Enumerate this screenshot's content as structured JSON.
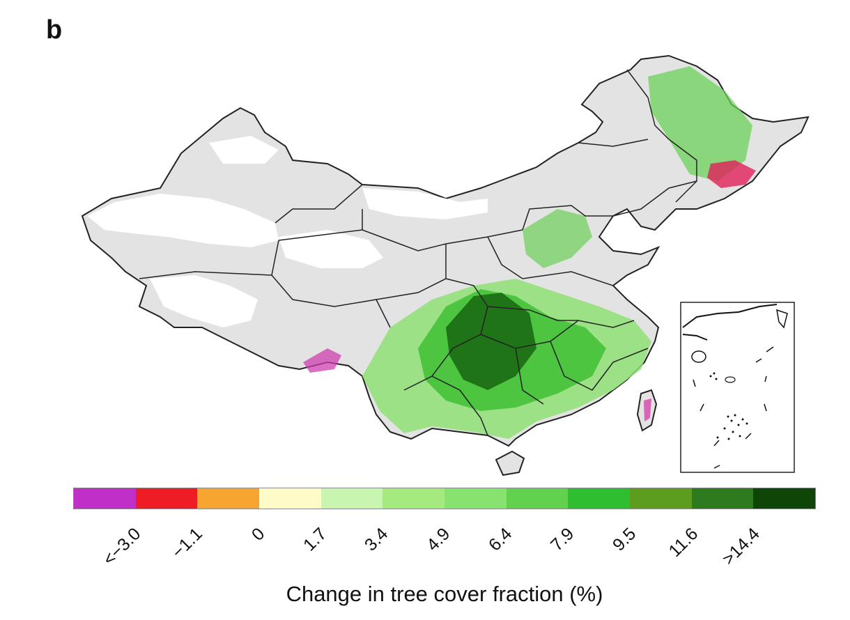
{
  "panel_label": "b",
  "legend": {
    "title": "Change in tree cover fraction (%)",
    "tick_labels": [
      "<−3.0",
      "−1.1",
      "0",
      "1.7",
      "3.4",
      "4.9",
      "6.4",
      "7.9",
      "9.5",
      "11.6",
      ">14.4"
    ],
    "colors": [
      "#c030c8",
      "#ee1c24",
      "#f7a531",
      "#fefbc8",
      "#c8f5b0",
      "#a4ea7e",
      "#88e270",
      "#62d24e",
      "#2fbe2f",
      "#5c9c1e",
      "#2e7a1e",
      "#0e4608"
    ]
  },
  "map": {
    "land_color": "#e3e3e3",
    "desert_color": "#ffffff",
    "border_color": "#222222",
    "inset_label": "South China Sea inset"
  }
}
